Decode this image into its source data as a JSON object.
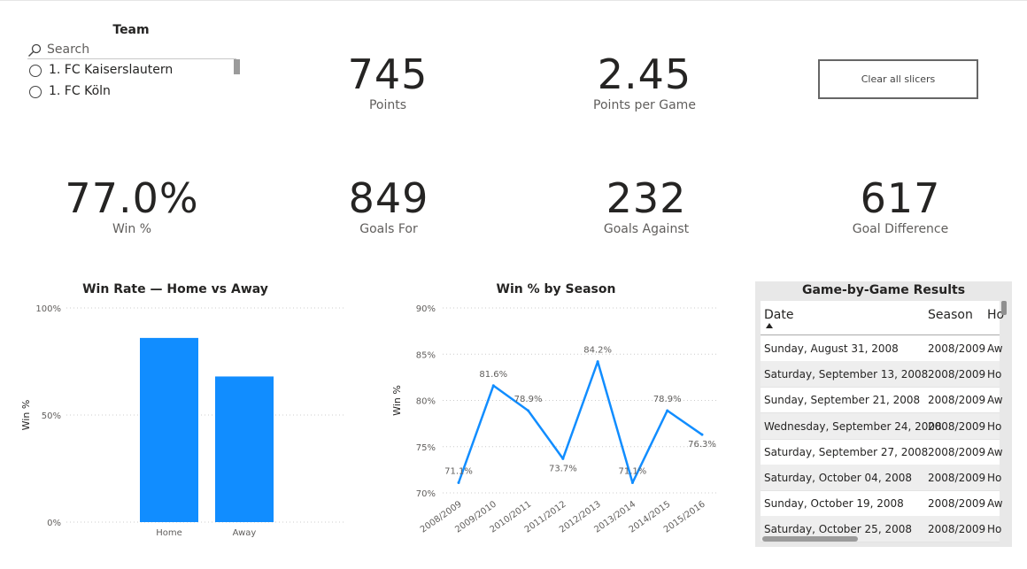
{
  "slicer": {
    "title": "Team",
    "search_placeholder": "Search",
    "items": [
      {
        "label": "1. FC Kaiserslautern"
      },
      {
        "label": "1. FC Köln"
      }
    ]
  },
  "kpis": {
    "points": {
      "value": "745",
      "label": "Points"
    },
    "ppg": {
      "value": "2.45",
      "label": "Points per Game"
    },
    "win_pct": {
      "value": "77.0%",
      "label": "Win %"
    },
    "goals_for": {
      "value": "849",
      "label": "Goals For"
    },
    "goals_against": {
      "value": "232",
      "label": "Goals Against"
    },
    "goal_diff": {
      "value": "617",
      "label": "Goal Difference"
    }
  },
  "clear_button": {
    "label": "Clear all slicers"
  },
  "colors": {
    "accent": "#118DFF",
    "grid": "#cccccc"
  },
  "chart_data": [
    {
      "type": "bar",
      "title": "Win Rate — Home vs Away",
      "xlabel": "",
      "ylabel": "Win %",
      "categories": [
        "Home",
        "Away"
      ],
      "values": [
        86,
        68
      ],
      "ylim": [
        0,
        100
      ],
      "yticks": [
        "0%",
        "50%",
        "100%"
      ],
      "grid": true
    },
    {
      "type": "line",
      "title": "Win % by Season",
      "xlabel": "",
      "ylabel": "Win %",
      "categories": [
        "2008/2009",
        "2009/2010",
        "2010/2011",
        "2011/2012",
        "2012/2013",
        "2013/2014",
        "2014/2015",
        "2015/2016"
      ],
      "values": [
        71.1,
        81.6,
        78.9,
        73.7,
        84.2,
        71.1,
        78.9,
        76.3
      ],
      "labels": [
        "71.1%",
        "81.6%",
        "78.9%",
        "73.7%",
        "84.2%",
        "71.1%",
        "78.9%",
        "76.3%"
      ],
      "ylim": [
        70,
        90
      ],
      "yticks": [
        "70%",
        "75%",
        "80%",
        "85%",
        "90%"
      ],
      "grid": true
    }
  ],
  "table": {
    "title": "Game-by-Game Results",
    "columns": [
      "Date",
      "Season",
      "Ho"
    ],
    "rows": [
      [
        "Sunday, August 31, 2008",
        "2008/2009",
        "Aw"
      ],
      [
        "Saturday, September 13, 2008",
        "2008/2009",
        "Ho"
      ],
      [
        "Sunday, September 21, 2008",
        "2008/2009",
        "Aw"
      ],
      [
        "Wednesday, September 24, 2008",
        "2008/2009",
        "Ho"
      ],
      [
        "Saturday, September 27, 2008",
        "2008/2009",
        "Aw"
      ],
      [
        "Saturday, October 04, 2008",
        "2008/2009",
        "Ho"
      ],
      [
        "Sunday, October 19, 2008",
        "2008/2009",
        "Aw"
      ],
      [
        "Saturday, October 25, 2008",
        "2008/2009",
        "Ho"
      ]
    ]
  }
}
